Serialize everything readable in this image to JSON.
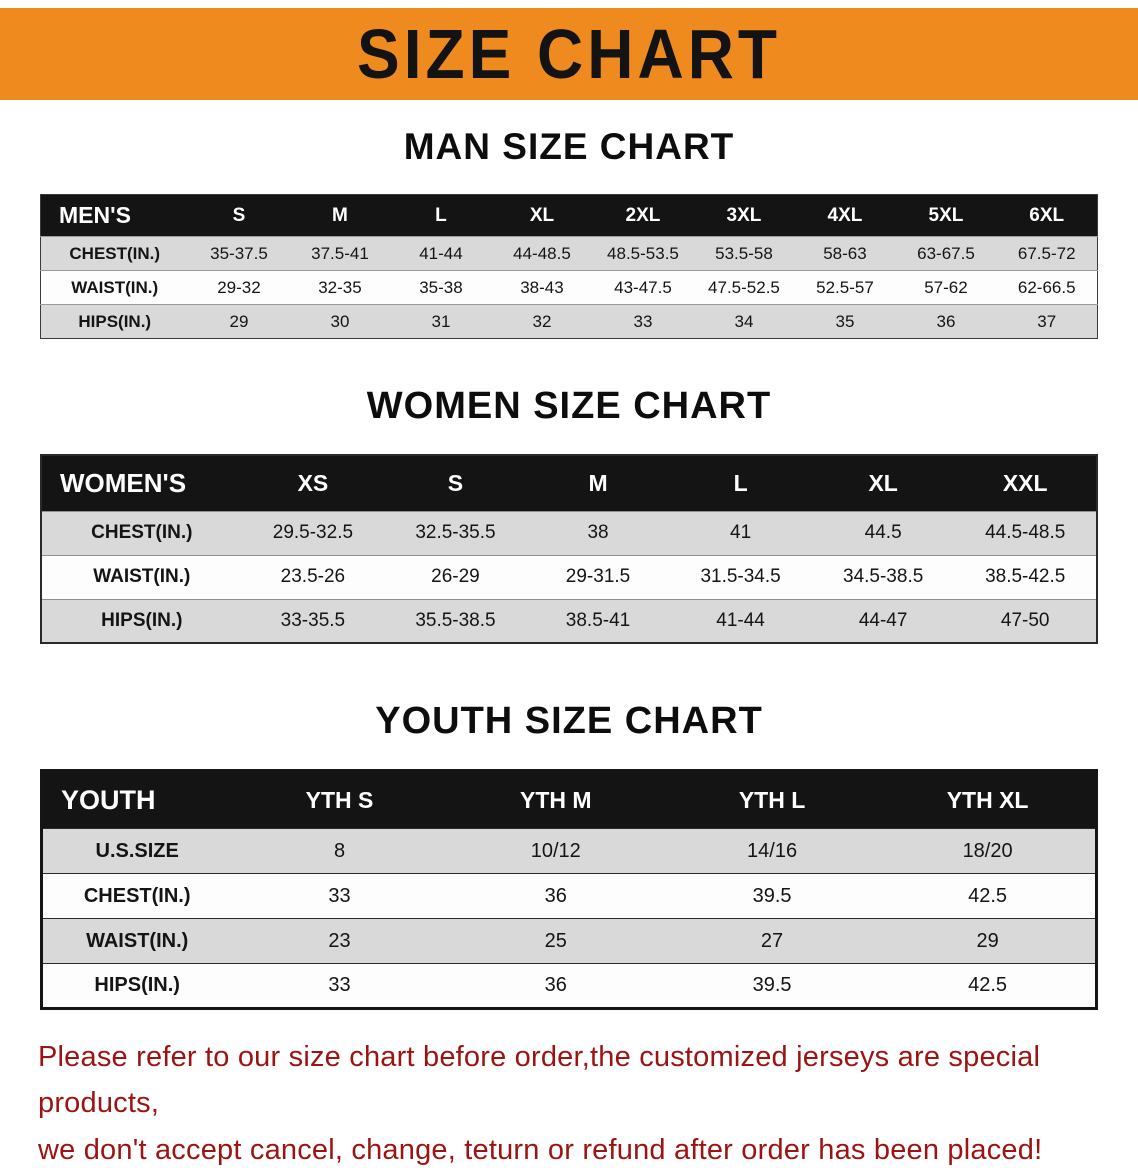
{
  "banner": {
    "title": "SIZE CHART",
    "bg_color": "#EE8A1E",
    "text_color": "#131313"
  },
  "sections": [
    {
      "id": "men",
      "title": "MAN SIZE CHART",
      "header": [
        "MEN'S",
        "S",
        "M",
        "L",
        "XL",
        "2XL",
        "3XL",
        "4XL",
        "5XL",
        "6XL"
      ],
      "rows": [
        {
          "label": "CHEST(IN.)",
          "values": [
            "35-37.5",
            "37.5-41",
            "41-44",
            "44-48.5",
            "48.5-53.5",
            "53.5-58",
            "58-63",
            "63-67.5",
            "67.5-72"
          ]
        },
        {
          "label": "WAIST(IN.)",
          "values": [
            "29-32",
            "32-35",
            "35-38",
            "38-43",
            "43-47.5",
            "47.5-52.5",
            "52.5-57",
            "57-62",
            "62-66.5"
          ]
        },
        {
          "label": "HIPS(IN.)",
          "values": [
            "29",
            "30",
            "31",
            "32",
            "33",
            "34",
            "35",
            "36",
            "37"
          ]
        }
      ]
    },
    {
      "id": "women",
      "title": "WOMEN SIZE CHART",
      "header": [
        "WOMEN'S",
        "XS",
        "S",
        "M",
        "L",
        "XL",
        "XXL"
      ],
      "rows": [
        {
          "label": "CHEST(IN.)",
          "values": [
            "29.5-32.5",
            "32.5-35.5",
            "38",
            "41",
            "44.5",
            "44.5-48.5"
          ]
        },
        {
          "label": "WAIST(IN.)",
          "values": [
            "23.5-26",
            "26-29",
            "29-31.5",
            "31.5-34.5",
            "34.5-38.5",
            "38.5-42.5"
          ]
        },
        {
          "label": "HIPS(IN.)",
          "values": [
            "33-35.5",
            "35.5-38.5",
            "38.5-41",
            "41-44",
            "44-47",
            "47-50"
          ]
        }
      ]
    },
    {
      "id": "youth",
      "title": "YOUTH SIZE CHART",
      "header": [
        "YOUTH",
        "YTH S",
        "YTH M",
        "YTH L",
        "YTH XL"
      ],
      "rows": [
        {
          "label": "U.S.SIZE",
          "values": [
            "8",
            "10/12",
            "14/16",
            "18/20"
          ]
        },
        {
          "label": "CHEST(IN.)",
          "values": [
            "33",
            "36",
            "39.5",
            "42.5"
          ]
        },
        {
          "label": "WAIST(IN.)",
          "values": [
            "23",
            "25",
            "27",
            "29"
          ]
        },
        {
          "label": "HIPS(IN.)",
          "values": [
            "33",
            "36",
            "39.5",
            "42.5"
          ]
        }
      ]
    }
  ],
  "footer": {
    "line1": "Please refer to our size chart before order,the customized jerseys are special products,",
    "line2": "we don't accept cancel, change, teturn or refund after order has been placed!",
    "text_color": "#9C1412"
  }
}
